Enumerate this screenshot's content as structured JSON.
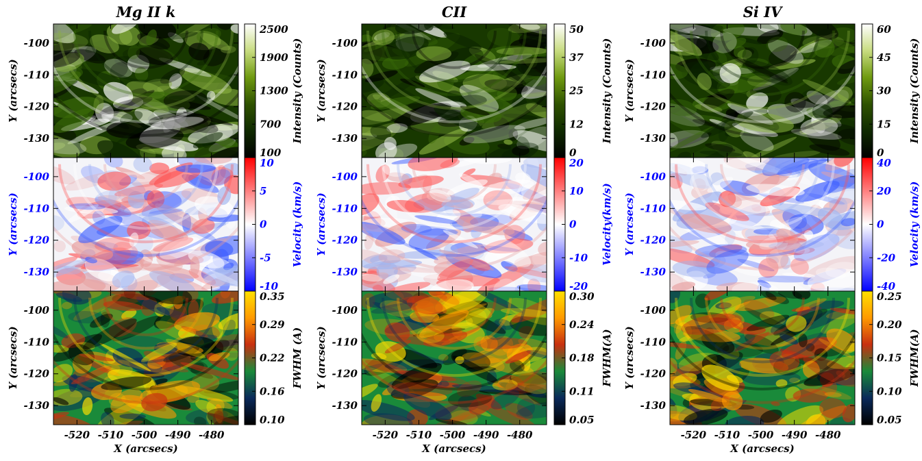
{
  "chart_data": {
    "type": "heatmap",
    "panels_layout": "3 columns x 3 rows",
    "columns": [
      {
        "title": "Mg II k",
        "rows": [
          {
            "quantity": "intensity",
            "colorbar_label": "Intensity (Counts)",
            "colorbar_ticks": [
              "100",
              "700",
              "1300",
              "1900",
              "2500"
            ],
            "range": [
              100,
              2500
            ],
            "colormap": [
              "#000000",
              "#0f2a00",
              "#2f5200",
              "#6f9a10",
              "#c8dc80",
              "#ffffff"
            ]
          },
          {
            "quantity": "velocity",
            "colorbar_label": "Velocity (km/s)",
            "colorbar_ticks": [
              "-10",
              "-5",
              "0",
              "5",
              "10"
            ],
            "range": [
              -10,
              10
            ],
            "colormap": [
              "#0000ff",
              "#ffffff",
              "#ff0000"
            ]
          },
          {
            "quantity": "fwhm",
            "colorbar_label": "FWHM (A)",
            "colorbar_ticks": [
              "0.10",
              "0.16",
              "0.22",
              "0.29",
              "0.35"
            ],
            "range": [
              0.1,
              0.35
            ],
            "colormap": [
              "#000000",
              "#0a2a5a",
              "#1a8a3a",
              "#c83010",
              "#ff9a00",
              "#ffe000"
            ]
          }
        ]
      },
      {
        "title": "CII",
        "rows": [
          {
            "quantity": "intensity",
            "colorbar_label": "Intensity (Counts)",
            "colorbar_ticks": [
              "0",
              "12",
              "25",
              "37",
              "50"
            ],
            "range": [
              0,
              50
            ],
            "colormap": [
              "#000000",
              "#0f2a00",
              "#2f5200",
              "#6f9a10",
              "#c8dc80",
              "#ffffff"
            ]
          },
          {
            "quantity": "velocity",
            "colorbar_label": "Velocity(km/s)",
            "colorbar_ticks": [
              "-20",
              "-10",
              "0",
              "10",
              "20"
            ],
            "range": [
              -20,
              20
            ],
            "colormap": [
              "#0000ff",
              "#ffffff",
              "#ff0000"
            ]
          },
          {
            "quantity": "fwhm",
            "colorbar_label": "FWHM(A)",
            "colorbar_ticks": [
              "0.05",
              "0.11",
              "0.18",
              "0.24",
              "0.30"
            ],
            "range": [
              0.05,
              0.3
            ],
            "colormap": [
              "#000000",
              "#0a2a5a",
              "#1a8a3a",
              "#c83010",
              "#ff9a00",
              "#ffe000"
            ]
          }
        ]
      },
      {
        "title": "Si IV",
        "rows": [
          {
            "quantity": "intensity",
            "colorbar_label": "Intensity (Counts)",
            "colorbar_ticks": [
              "0",
              "15",
              "30",
              "45",
              "60"
            ],
            "range": [
              0,
              60
            ],
            "colormap": [
              "#000000",
              "#0f2a00",
              "#2f5200",
              "#6f9a10",
              "#c8dc80",
              "#ffffff"
            ]
          },
          {
            "quantity": "velocity",
            "colorbar_label": "Velocity (km/s)",
            "colorbar_ticks": [
              "-40",
              "-20",
              "0",
              "20",
              "40"
            ],
            "range": [
              -40,
              40
            ],
            "colormap": [
              "#0000ff",
              "#ffffff",
              "#ff0000"
            ]
          },
          {
            "quantity": "fwhm",
            "colorbar_label": "FWHM(A)",
            "colorbar_ticks": [
              "0.05",
              "0.10",
              "0.15",
              "0.20",
              "0.25"
            ],
            "range": [
              0.05,
              0.25
            ],
            "colormap": [
              "#000000",
              "#0a2a5a",
              "#1a8a3a",
              "#c83010",
              "#ff9a00",
              "#ffe000"
            ]
          }
        ]
      }
    ],
    "row_label_colors": [
      "#000000",
      "#0000ff",
      "#000000"
    ],
    "colorbar_label_colors": [
      "#000000",
      "#0000ff",
      "#000000"
    ],
    "ylabel": "Y (arcsecs)",
    "yticks": [
      -100,
      -110,
      -120,
      -130
    ],
    "ylim": [
      -136,
      -94
    ],
    "xlabel": "X (arcsecs)",
    "xticks": [
      -520,
      -510,
      -500,
      -490,
      -480
    ],
    "xlim": [
      -527,
      -472
    ]
  }
}
